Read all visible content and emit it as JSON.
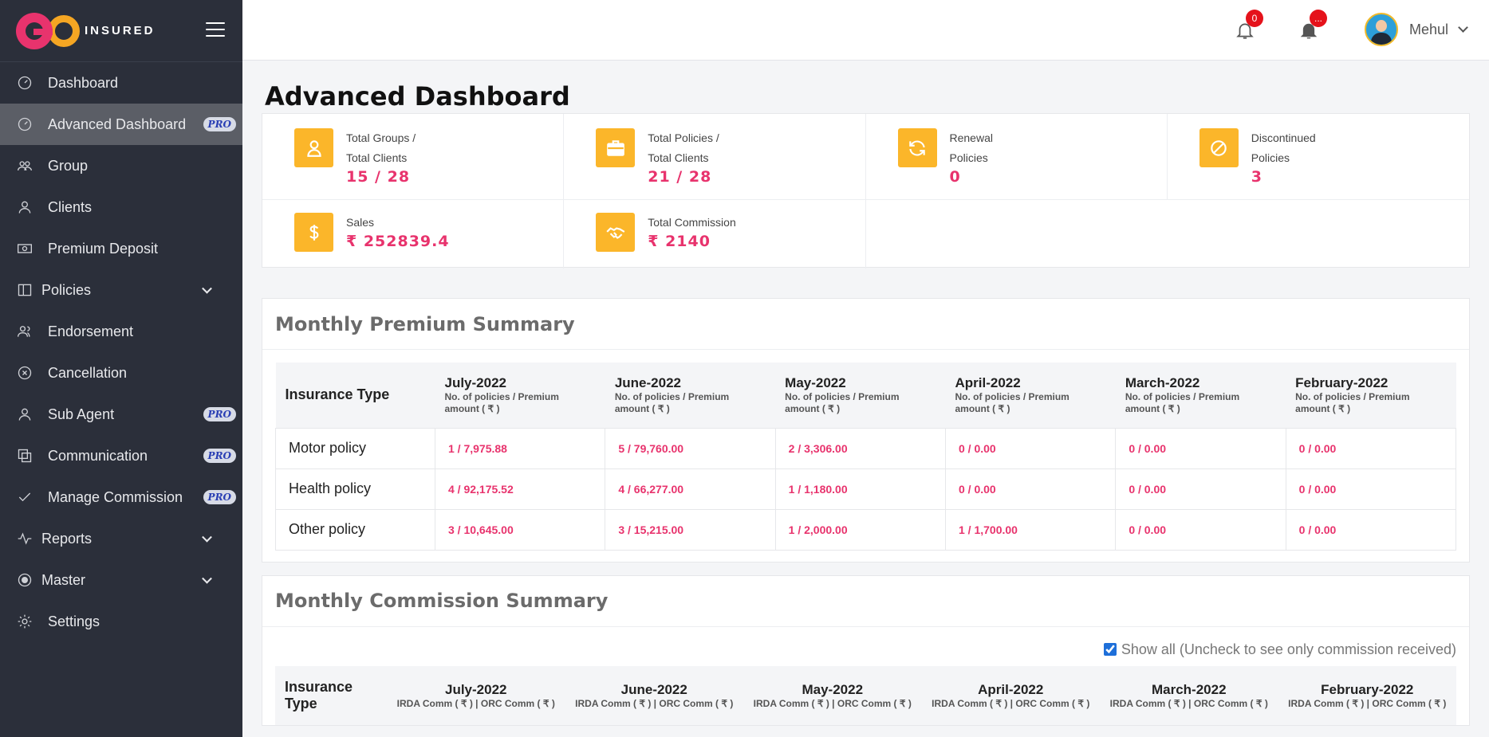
{
  "brand": {
    "logo_text": "INSURED"
  },
  "sidebar": {
    "items": [
      {
        "label": "Dashboard",
        "icon": "speedometer-icon"
      },
      {
        "label": "Advanced Dashboard",
        "icon": "speedometer-icon",
        "badge": "PRO",
        "active": true
      },
      {
        "label": "Group",
        "icon": "group-icon"
      },
      {
        "label": "Clients",
        "icon": "user-icon"
      },
      {
        "label": "Premium Deposit",
        "icon": "money-icon"
      },
      {
        "label": "Policies",
        "icon": "book-icon",
        "expandable": true
      },
      {
        "label": "Endorsement",
        "icon": "users-icon"
      },
      {
        "label": "Cancellation",
        "icon": "cancel-circle-icon"
      },
      {
        "label": "Sub Agent",
        "icon": "user-icon",
        "badge": "PRO"
      },
      {
        "label": "Communication",
        "icon": "copy-icon",
        "badge": "PRO"
      },
      {
        "label": "Manage Commission",
        "icon": "check-icon",
        "badge": "PRO"
      },
      {
        "label": "Reports",
        "icon": "pulse-icon",
        "expandable": true
      },
      {
        "label": "Master",
        "icon": "target-icon",
        "expandable": true
      },
      {
        "label": "Settings",
        "icon": "gear-icon"
      }
    ]
  },
  "topbar": {
    "notification_count": "0",
    "alert_count": "...",
    "user_name": "Mehul"
  },
  "page": {
    "title": "Advanced Dashboard"
  },
  "stats": {
    "groups": {
      "label1": "Total Groups /",
      "label2": "Total Clients",
      "value": "15 / 28",
      "icon": "user-outline-icon"
    },
    "policies": {
      "label1": "Total Policies /",
      "label2": "Total Clients",
      "value": "21  / 28",
      "icon": "briefcase-icon"
    },
    "renewal": {
      "label1": "Renewal",
      "label2": "Policies",
      "value": "0",
      "icon": "refresh-icon"
    },
    "discontinued": {
      "label1": "Discontinued",
      "label2": "Policies",
      "value": "3",
      "icon": "ban-icon"
    },
    "sales": {
      "label1": "Sales",
      "value": "₹ 252839.4",
      "icon": "dollar-icon"
    },
    "commission": {
      "label1": "Total Commission",
      "value": "₹ 2140",
      "icon": "handshake-icon"
    }
  },
  "premium_summary": {
    "title": "Monthly Premium Summary",
    "type_header": "Insurance Type",
    "months": [
      {
        "name": "July-2022",
        "sub": "No. of policies / Premium amount ( ₹ )"
      },
      {
        "name": "June-2022",
        "sub": "No. of policies / Premium amount ( ₹ )"
      },
      {
        "name": "May-2022",
        "sub": "No. of policies / Premium amount ( ₹ )"
      },
      {
        "name": "April-2022",
        "sub": "No. of policies / Premium amount ( ₹ )"
      },
      {
        "name": "March-2022",
        "sub": "No. of policies / Premium amount ( ₹ )"
      },
      {
        "name": "February-2022",
        "sub": "No. of policies / Premium amount ( ₹ )"
      }
    ],
    "rows": [
      {
        "type": "Motor policy",
        "values": [
          "1 / 7,975.88",
          "5 / 79,760.00",
          "2 / 3,306.00",
          "0 / 0.00",
          "0 / 0.00",
          "0 / 0.00"
        ]
      },
      {
        "type": "Health policy",
        "values": [
          "4 / 92,175.52",
          "4 / 66,277.00",
          "1 / 1,180.00",
          "0 / 0.00",
          "0 / 0.00",
          "0 / 0.00"
        ]
      },
      {
        "type": "Other policy",
        "values": [
          "3 / 10,645.00",
          "3 / 15,215.00",
          "1 / 2,000.00",
          "1 / 1,700.00",
          "0 / 0.00",
          "0 / 0.00"
        ]
      }
    ]
  },
  "commission_summary": {
    "title": "Monthly Commission Summary",
    "show_all_label": "Show all (Uncheck to see only commission received)",
    "show_all_checked": true,
    "type_header": "Insurance Type",
    "months": [
      {
        "name": "July-2022",
        "sub": "IRDA Comm ( ₹ ) | ORC Comm ( ₹ )"
      },
      {
        "name": "June-2022",
        "sub": "IRDA Comm ( ₹ ) | ORC Comm ( ₹ )"
      },
      {
        "name": "May-2022",
        "sub": "IRDA Comm ( ₹ ) | ORC Comm ( ₹ )"
      },
      {
        "name": "April-2022",
        "sub": "IRDA Comm ( ₹ ) | ORC Comm ( ₹ )"
      },
      {
        "name": "March-2022",
        "sub": "IRDA Comm ( ₹ ) | ORC Comm ( ₹ )"
      },
      {
        "name": "February-2022",
        "sub": "IRDA Comm ( ₹ ) | ORC Comm ( ₹ )"
      }
    ]
  },
  "colors": {
    "sidebar_bg": "#2b2f3a",
    "accent_pink": "#e8336d",
    "accent_yellow": "#fbb62a"
  }
}
